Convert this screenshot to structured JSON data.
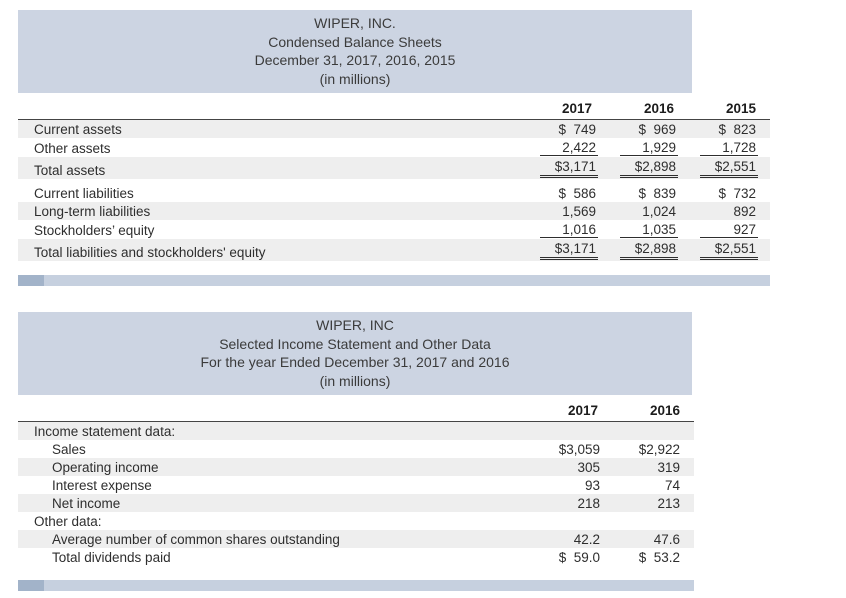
{
  "colors": {
    "title_block_bg": "#ccd4e2",
    "row_stripe": "#eeeeee",
    "scrollbar_track": "#c6d0df",
    "scrollbar_thumb": "#a2b3c9",
    "text": "#2e2e2e"
  },
  "balance_sheet": {
    "title_lines": [
      "WIPER, INC.",
      "Condensed Balance Sheets",
      "December 31, 2017, 2016, 2015",
      "(in millions)"
    ],
    "col_headers": [
      "2017",
      "2016",
      "2015"
    ],
    "rows": [
      {
        "label": "Current assets",
        "values": [
          "$  749",
          "$  969",
          "$  823"
        ]
      },
      {
        "label": "Other assets",
        "values": [
          "2,422",
          "1,929",
          "1,728"
        ]
      },
      {
        "label": "Total assets",
        "values": [
          "$3,171",
          "$2,898",
          "$2,551"
        ]
      },
      {
        "label": "Current liabilities",
        "values": [
          "$  586",
          "$  839",
          "$  732"
        ]
      },
      {
        "label": "Long-term liabilities",
        "values": [
          "1,569",
          "1,024",
          "892"
        ]
      },
      {
        "label": "Stockholders’ equity",
        "values": [
          "1,016",
          "1,035",
          "927"
        ]
      },
      {
        "label": "Total liabilities and stockholders' equity",
        "values": [
          "$3,171",
          "$2,898",
          "$2,551"
        ]
      }
    ]
  },
  "income_statement": {
    "title_lines": [
      "WIPER, INC",
      "Selected Income Statement and Other Data",
      "For the year Ended December 31, 2017 and 2016",
      "(in millions)"
    ],
    "col_headers": [
      "2017",
      "2016"
    ],
    "rows": [
      {
        "label": "Income statement data:",
        "values": [
          "",
          ""
        ]
      },
      {
        "label": "Sales",
        "values": [
          "$3,059",
          "$2,922"
        ]
      },
      {
        "label": "Operating income",
        "values": [
          "305",
          "319"
        ]
      },
      {
        "label": "Interest expense",
        "values": [
          "93",
          "74"
        ]
      },
      {
        "label": "Net income",
        "values": [
          "218",
          "213"
        ]
      },
      {
        "label": "Other data:",
        "values": [
          "",
          ""
        ]
      },
      {
        "label": "Average number of common shares outstanding",
        "values": [
          "42.2",
          "47.6"
        ]
      },
      {
        "label": "Total dividends paid",
        "values": [
          "$  59.0",
          "$  53.2"
        ]
      }
    ]
  }
}
